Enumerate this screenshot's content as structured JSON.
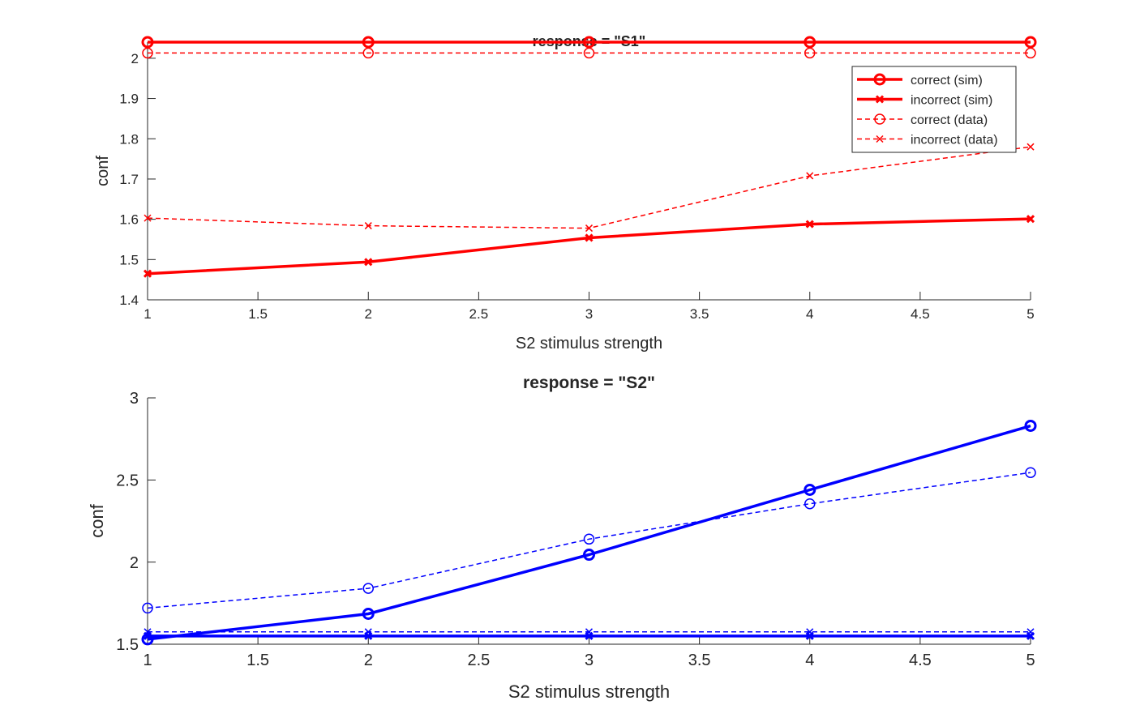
{
  "chart_data": [
    {
      "type": "line",
      "title": "response = \"S1\"",
      "xlabel": "S2 stimulus strength",
      "ylabel": "conf",
      "xlim": [
        1,
        5
      ],
      "ylim": [
        1.4,
        2.04
      ],
      "x_ticks": [
        1,
        1.5,
        2,
        2.5,
        3,
        3.5,
        4,
        4.5,
        5
      ],
      "x_tick_labels": [
        "1",
        "1.5",
        "2",
        "2.5",
        "3",
        "3.5",
        "4",
        "4.5",
        "5"
      ],
      "y_ticks": [
        1.4,
        1.5,
        1.6,
        1.7,
        1.8,
        1.9,
        2
      ],
      "y_tick_labels": [
        "1.4",
        "1.5",
        "1.6",
        "1.7",
        "1.8",
        "1.9",
        "2"
      ],
      "grid": false,
      "legend_position": "top-right",
      "color": "#ff0000",
      "x": [
        1,
        2,
        3,
        4,
        5
      ],
      "series": [
        {
          "name": "correct (sim)",
          "marker": "circle",
          "style": "solid",
          "values": [
            2.04,
            2.04,
            2.04,
            2.04,
            2.04
          ]
        },
        {
          "name": "incorrect (sim)",
          "marker": "x",
          "style": "solid",
          "values": [
            1.465,
            1.494,
            1.554,
            1.588,
            1.601
          ]
        },
        {
          "name": "correct (data)",
          "marker": "circle",
          "style": "dashed",
          "values": [
            2.013,
            2.013,
            2.013,
            2.013,
            2.013
          ]
        },
        {
          "name": "incorrect (data)",
          "marker": "x",
          "style": "dashed",
          "values": [
            1.603,
            1.584,
            1.578,
            1.708,
            1.78
          ]
        }
      ]
    },
    {
      "type": "line",
      "title": "response = \"S2\"",
      "xlabel": "S2 stimulus strength",
      "ylabel": "conf",
      "xlim": [
        1,
        5
      ],
      "ylim": [
        1.5,
        3
      ],
      "x_ticks": [
        1,
        1.5,
        2,
        2.5,
        3,
        3.5,
        4,
        4.5,
        5
      ],
      "x_tick_labels": [
        "1",
        "1.5",
        "2",
        "2.5",
        "3",
        "3.5",
        "4",
        "4.5",
        "5"
      ],
      "y_ticks": [
        1.5,
        2,
        2.5,
        3
      ],
      "y_tick_labels": [
        "1.5",
        "2",
        "2.5",
        "3"
      ],
      "grid": false,
      "color": "#0000ff",
      "x": [
        1,
        2,
        3,
        4,
        5
      ],
      "series": [
        {
          "marker": "circle",
          "style": "solid",
          "values": [
            1.53,
            1.685,
            2.045,
            2.44,
            2.83
          ]
        },
        {
          "marker": "x",
          "style": "solid",
          "values": [
            1.55,
            1.55,
            1.55,
            1.55,
            1.55
          ]
        },
        {
          "marker": "circle",
          "style": "dashed",
          "values": [
            1.72,
            1.84,
            2.14,
            2.355,
            2.545
          ]
        },
        {
          "marker": "x",
          "style": "dashed",
          "values": [
            1.575,
            1.575,
            1.575,
            1.575,
            1.575
          ]
        }
      ]
    }
  ]
}
